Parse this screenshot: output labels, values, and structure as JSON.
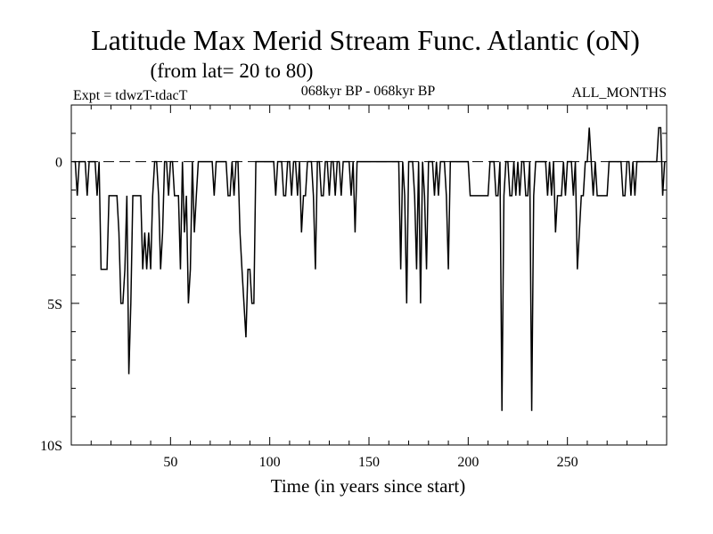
{
  "chart_data": {
    "type": "line",
    "title": "Latitude Max Merid Stream Func. Atlantic (oN)",
    "subtitle": "(from lat= 20 to 80)",
    "header_left": "Expt = tdwzT-tdacT",
    "header_center": "068kyr BP - 068kyr BP",
    "header_right": "ALL_MONTHS",
    "xlabel": "Time (in years since start)",
    "ylabel": "",
    "xlim": [
      0,
      300
    ],
    "ylim": [
      -10,
      2
    ],
    "x_ticks": [
      50,
      100,
      150,
      200,
      250
    ],
    "x_tick_labels": [
      "50",
      "100",
      "150",
      "200",
      "250"
    ],
    "y_ticks": [
      0,
      -5,
      -10
    ],
    "y_tick_labels": [
      "0",
      "5S",
      "10S"
    ],
    "reference_line": 0,
    "grid": false,
    "series": [
      {
        "color": "#000000",
        "points": [
          [
            1,
            0
          ],
          [
            2,
            0
          ],
          [
            3,
            -1.2
          ],
          [
            4,
            0
          ],
          [
            5,
            0
          ],
          [
            6,
            0
          ],
          [
            7,
            0
          ],
          [
            8,
            -1.2
          ],
          [
            9,
            0
          ],
          [
            10,
            0
          ],
          [
            11,
            0
          ],
          [
            12,
            0
          ],
          [
            13,
            -1.2
          ],
          [
            14,
            0
          ],
          [
            15,
            -3.8
          ],
          [
            16,
            -3.8
          ],
          [
            17,
            -3.8
          ],
          [
            18,
            -3.8
          ],
          [
            19,
            -1.2
          ],
          [
            20,
            -1.2
          ],
          [
            21,
            -1.2
          ],
          [
            22,
            -1.2
          ],
          [
            23,
            -1.2
          ],
          [
            24,
            -2.5
          ],
          [
            25,
            -5
          ],
          [
            26,
            -5
          ],
          [
            27,
            -3.8
          ],
          [
            28,
            -1.2
          ],
          [
            29,
            -7.5
          ],
          [
            30,
            -5
          ],
          [
            31,
            -1.2
          ],
          [
            32,
            -1.2
          ],
          [
            33,
            -1.2
          ],
          [
            34,
            -1.2
          ],
          [
            35,
            -1.2
          ],
          [
            36,
            -3.8
          ],
          [
            37,
            -2.5
          ],
          [
            38,
            -3.8
          ],
          [
            39,
            -2.5
          ],
          [
            40,
            -3.8
          ],
          [
            41,
            -1.2
          ],
          [
            42,
            0
          ],
          [
            43,
            0
          ],
          [
            44,
            -1.2
          ],
          [
            45,
            -3.8
          ],
          [
            46,
            -2.5
          ],
          [
            47,
            0
          ],
          [
            48,
            0
          ],
          [
            49,
            -1.2
          ],
          [
            50,
            0
          ],
          [
            51,
            0
          ],
          [
            52,
            -1.2
          ],
          [
            53,
            -1.2
          ],
          [
            54,
            -1.2
          ],
          [
            55,
            -3.8
          ],
          [
            56,
            0
          ],
          [
            57,
            -2.5
          ],
          [
            58,
            -1.2
          ],
          [
            59,
            -5
          ],
          [
            60,
            -3.8
          ],
          [
            61,
            0
          ],
          [
            62,
            -2.5
          ],
          [
            63,
            -1.2
          ],
          [
            64,
            0
          ],
          [
            65,
            0
          ],
          [
            66,
            0
          ],
          [
            67,
            0
          ],
          [
            68,
            0
          ],
          [
            69,
            0
          ],
          [
            70,
            0
          ],
          [
            71,
            0
          ],
          [
            72,
            -1.2
          ],
          [
            73,
            0
          ],
          [
            74,
            0
          ],
          [
            75,
            0
          ],
          [
            76,
            0
          ],
          [
            77,
            0
          ],
          [
            78,
            0
          ],
          [
            79,
            -1.2
          ],
          [
            80,
            -1.2
          ],
          [
            81,
            0
          ],
          [
            82,
            -1.2
          ],
          [
            83,
            0
          ],
          [
            84,
            0
          ],
          [
            85,
            -2.5
          ],
          [
            86,
            -3.8
          ],
          [
            87,
            -5
          ],
          [
            88,
            -6.2
          ],
          [
            89,
            -3.8
          ],
          [
            90,
            -3.8
          ],
          [
            91,
            -5
          ],
          [
            92,
            -5
          ],
          [
            93,
            0
          ],
          [
            94,
            0
          ],
          [
            95,
            0
          ],
          [
            96,
            0
          ],
          [
            97,
            0
          ],
          [
            98,
            0
          ],
          [
            99,
            0
          ],
          [
            100,
            0
          ],
          [
            101,
            0
          ],
          [
            102,
            0
          ],
          [
            103,
            -1.2
          ],
          [
            104,
            0
          ],
          [
            105,
            0
          ],
          [
            106,
            0
          ],
          [
            107,
            -1.2
          ],
          [
            108,
            -1.2
          ],
          [
            109,
            0
          ],
          [
            110,
            0
          ],
          [
            111,
            -1.2
          ],
          [
            112,
            0
          ],
          [
            113,
            0
          ],
          [
            114,
            -1.2
          ],
          [
            115,
            0
          ],
          [
            116,
            -2.5
          ],
          [
            117,
            -1.2
          ],
          [
            118,
            -1.2
          ],
          [
            119,
            0
          ],
          [
            120,
            0
          ],
          [
            121,
            0
          ],
          [
            122,
            -1.2
          ],
          [
            123,
            -3.8
          ],
          [
            124,
            0
          ],
          [
            125,
            0
          ],
          [
            126,
            -1.2
          ],
          [
            127,
            -1.2
          ],
          [
            128,
            0
          ],
          [
            129,
            0
          ],
          [
            130,
            -1.2
          ],
          [
            131,
            0
          ],
          [
            132,
            0
          ],
          [
            133,
            -1.2
          ],
          [
            134,
            0
          ],
          [
            135,
            0
          ],
          [
            136,
            -1.2
          ],
          [
            137,
            0
          ],
          [
            138,
            0
          ],
          [
            139,
            0
          ],
          [
            140,
            0
          ],
          [
            141,
            -1.2
          ],
          [
            142,
            0
          ],
          [
            143,
            -2.5
          ],
          [
            144,
            0
          ],
          [
            145,
            0
          ],
          [
            146,
            0
          ],
          [
            147,
            0
          ],
          [
            148,
            0
          ],
          [
            149,
            0
          ],
          [
            150,
            0
          ],
          [
            151,
            0
          ],
          [
            152,
            0
          ],
          [
            153,
            0
          ],
          [
            154,
            0
          ],
          [
            155,
            0
          ],
          [
            156,
            0
          ],
          [
            157,
            0
          ],
          [
            158,
            0
          ],
          [
            159,
            0
          ],
          [
            160,
            0
          ],
          [
            161,
            0
          ],
          [
            162,
            0
          ],
          [
            163,
            0
          ],
          [
            164,
            0
          ],
          [
            165,
            0
          ],
          [
            166,
            -3.8
          ],
          [
            167,
            0
          ],
          [
            168,
            -1.2
          ],
          [
            169,
            -5
          ],
          [
            170,
            0
          ],
          [
            171,
            0
          ],
          [
            172,
            0
          ],
          [
            173,
            -1.2
          ],
          [
            174,
            -3.8
          ],
          [
            175,
            0
          ],
          [
            176,
            -5
          ],
          [
            177,
            0
          ],
          [
            178,
            -1.2
          ],
          [
            179,
            -3.8
          ],
          [
            180,
            0
          ],
          [
            181,
            0
          ],
          [
            182,
            0
          ],
          [
            183,
            -1.2
          ],
          [
            184,
            0
          ],
          [
            185,
            -1.2
          ],
          [
            186,
            0
          ],
          [
            187,
            0
          ],
          [
            188,
            0
          ],
          [
            189,
            -1.2
          ],
          [
            190,
            -3.8
          ],
          [
            191,
            0
          ],
          [
            192,
            0
          ],
          [
            193,
            0
          ],
          [
            194,
            0
          ],
          [
            195,
            0
          ],
          [
            196,
            0
          ],
          [
            197,
            0
          ],
          [
            198,
            0
          ],
          [
            199,
            0
          ],
          [
            200,
            0
          ],
          [
            201,
            -1.2
          ],
          [
            202,
            -1.2
          ],
          [
            203,
            -1.2
          ],
          [
            204,
            -1.2
          ],
          [
            205,
            -1.2
          ],
          [
            206,
            -1.2
          ],
          [
            207,
            -1.2
          ],
          [
            208,
            -1.2
          ],
          [
            209,
            -1.2
          ],
          [
            210,
            -1.2
          ],
          [
            211,
            0
          ],
          [
            212,
            0
          ],
          [
            213,
            0
          ],
          [
            214,
            -1.2
          ],
          [
            215,
            -1.2
          ],
          [
            216,
            0
          ],
          [
            217,
            -8.8
          ],
          [
            218,
            -1.2
          ],
          [
            219,
            0
          ],
          [
            220,
            0
          ],
          [
            221,
            -1.2
          ],
          [
            222,
            -1.2
          ],
          [
            223,
            0
          ],
          [
            224,
            -1.2
          ],
          [
            225,
            0
          ],
          [
            226,
            -1.2
          ],
          [
            227,
            0
          ],
          [
            228,
            0
          ],
          [
            229,
            -1.2
          ],
          [
            230,
            -1.2
          ],
          [
            231,
            0
          ],
          [
            232,
            -8.8
          ],
          [
            233,
            -1.2
          ],
          [
            234,
            0
          ],
          [
            235,
            0
          ],
          [
            236,
            0
          ],
          [
            237,
            0
          ],
          [
            238,
            0
          ],
          [
            239,
            0
          ],
          [
            240,
            -1.2
          ],
          [
            241,
            0
          ],
          [
            242,
            -1.2
          ],
          [
            243,
            0
          ],
          [
            244,
            -2.5
          ],
          [
            245,
            -1.2
          ],
          [
            246,
            -1.2
          ],
          [
            247,
            -1.2
          ],
          [
            248,
            0
          ],
          [
            249,
            -1.2
          ],
          [
            250,
            0
          ],
          [
            251,
            0
          ],
          [
            252,
            0
          ],
          [
            253,
            -1.2
          ],
          [
            254,
            0
          ],
          [
            255,
            -3.8
          ],
          [
            256,
            -2.5
          ],
          [
            257,
            -1.2
          ],
          [
            258,
            -1.2
          ],
          [
            259,
            0
          ],
          [
            260,
            0
          ],
          [
            261,
            1.2
          ],
          [
            262,
            0
          ],
          [
            263,
            -1.2
          ],
          [
            264,
            0
          ],
          [
            265,
            -1.2
          ],
          [
            266,
            -1.2
          ],
          [
            267,
            -1.2
          ],
          [
            268,
            -1.2
          ],
          [
            269,
            -1.2
          ],
          [
            270,
            -1.2
          ],
          [
            271,
            0
          ],
          [
            272,
            0
          ],
          [
            273,
            0
          ],
          [
            274,
            0
          ],
          [
            275,
            0
          ],
          [
            276,
            0
          ],
          [
            277,
            0
          ],
          [
            278,
            -1.2
          ],
          [
            279,
            -1.2
          ],
          [
            280,
            0
          ],
          [
            281,
            0
          ],
          [
            282,
            -1.2
          ],
          [
            283,
            0
          ],
          [
            284,
            -1.2
          ],
          [
            285,
            0
          ],
          [
            286,
            0
          ],
          [
            287,
            0
          ],
          [
            288,
            0
          ],
          [
            289,
            0
          ],
          [
            290,
            0
          ],
          [
            291,
            0
          ],
          [
            292,
            0
          ],
          [
            293,
            0
          ],
          [
            294,
            0
          ],
          [
            295,
            0
          ],
          [
            296,
            1.2
          ],
          [
            297,
            1.2
          ],
          [
            298,
            -1.2
          ],
          [
            299,
            0
          ]
        ]
      }
    ]
  }
}
